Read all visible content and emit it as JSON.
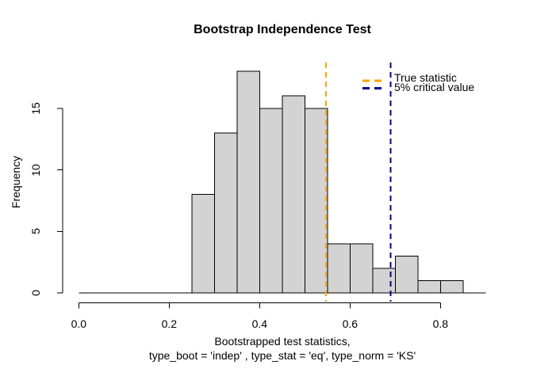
{
  "window": {
    "background": "#FFFFFF"
  },
  "title": "Bootstrap Independence Test",
  "x_axis": {
    "label_line1": "Bootstrapped test statistics,",
    "label_line2": "type_boot = 'indep' , type_stat = 'eq', type_norm = 'KS'",
    "tick_labels": [
      "0.0",
      "0.2",
      "0.4",
      "0.6",
      "0.8"
    ],
    "tick_values": [
      0,
      0.2,
      0.4,
      0.6,
      0.8
    ]
  },
  "y_axis": {
    "label": "Frequency",
    "tick_labels": [
      "0",
      "5",
      "10",
      "15"
    ],
    "tick_values": [
      0,
      5,
      10,
      15
    ]
  },
  "legend": {
    "position": "top-right",
    "items": [
      {
        "label": "True statistic",
        "color": "#FFA500",
        "line_style": "dashed"
      },
      {
        "label": "5% critical value",
        "color": "#00008B",
        "line_style": "dashed"
      }
    ]
  },
  "chart_data": {
    "type": "bar",
    "subtype": "histogram",
    "title": "Bootstrap Independence Test",
    "xlabel": "Bootstrapped test statistics, type_boot = 'indep' , type_stat = 'eq', type_norm = 'KS'",
    "ylabel": "Frequency",
    "bin_breaks": [
      0,
      0.05,
      0.1,
      0.15,
      0.2,
      0.25,
      0.3,
      0.35,
      0.4,
      0.45,
      0.5,
      0.55,
      0.6,
      0.65,
      0.7,
      0.75,
      0.8,
      0.85,
      0.9
    ],
    "counts": [
      0,
      0,
      0,
      0,
      0,
      8,
      13,
      18,
      15,
      16,
      15,
      4,
      4,
      2,
      3,
      1,
      1,
      0
    ],
    "total_samples": 100,
    "xlim": [
      0,
      0.9
    ],
    "ylim": [
      0,
      18
    ],
    "x_ticks": [
      0,
      0.2,
      0.4,
      0.6,
      0.8
    ],
    "y_ticks": [
      0,
      5,
      10,
      15
    ],
    "bar_fill": "#D3D3D3",
    "bar_border": "#000000",
    "axis_color": "#000000",
    "grid": false,
    "legend_position": "top-right",
    "vlines": [
      {
        "x": 0.547,
        "label": "True statistic",
        "color": "#FFA500",
        "style": "dashed"
      },
      {
        "x": 0.69,
        "label": "5% critical value",
        "color": "#00008B",
        "style": "dashed"
      }
    ]
  }
}
